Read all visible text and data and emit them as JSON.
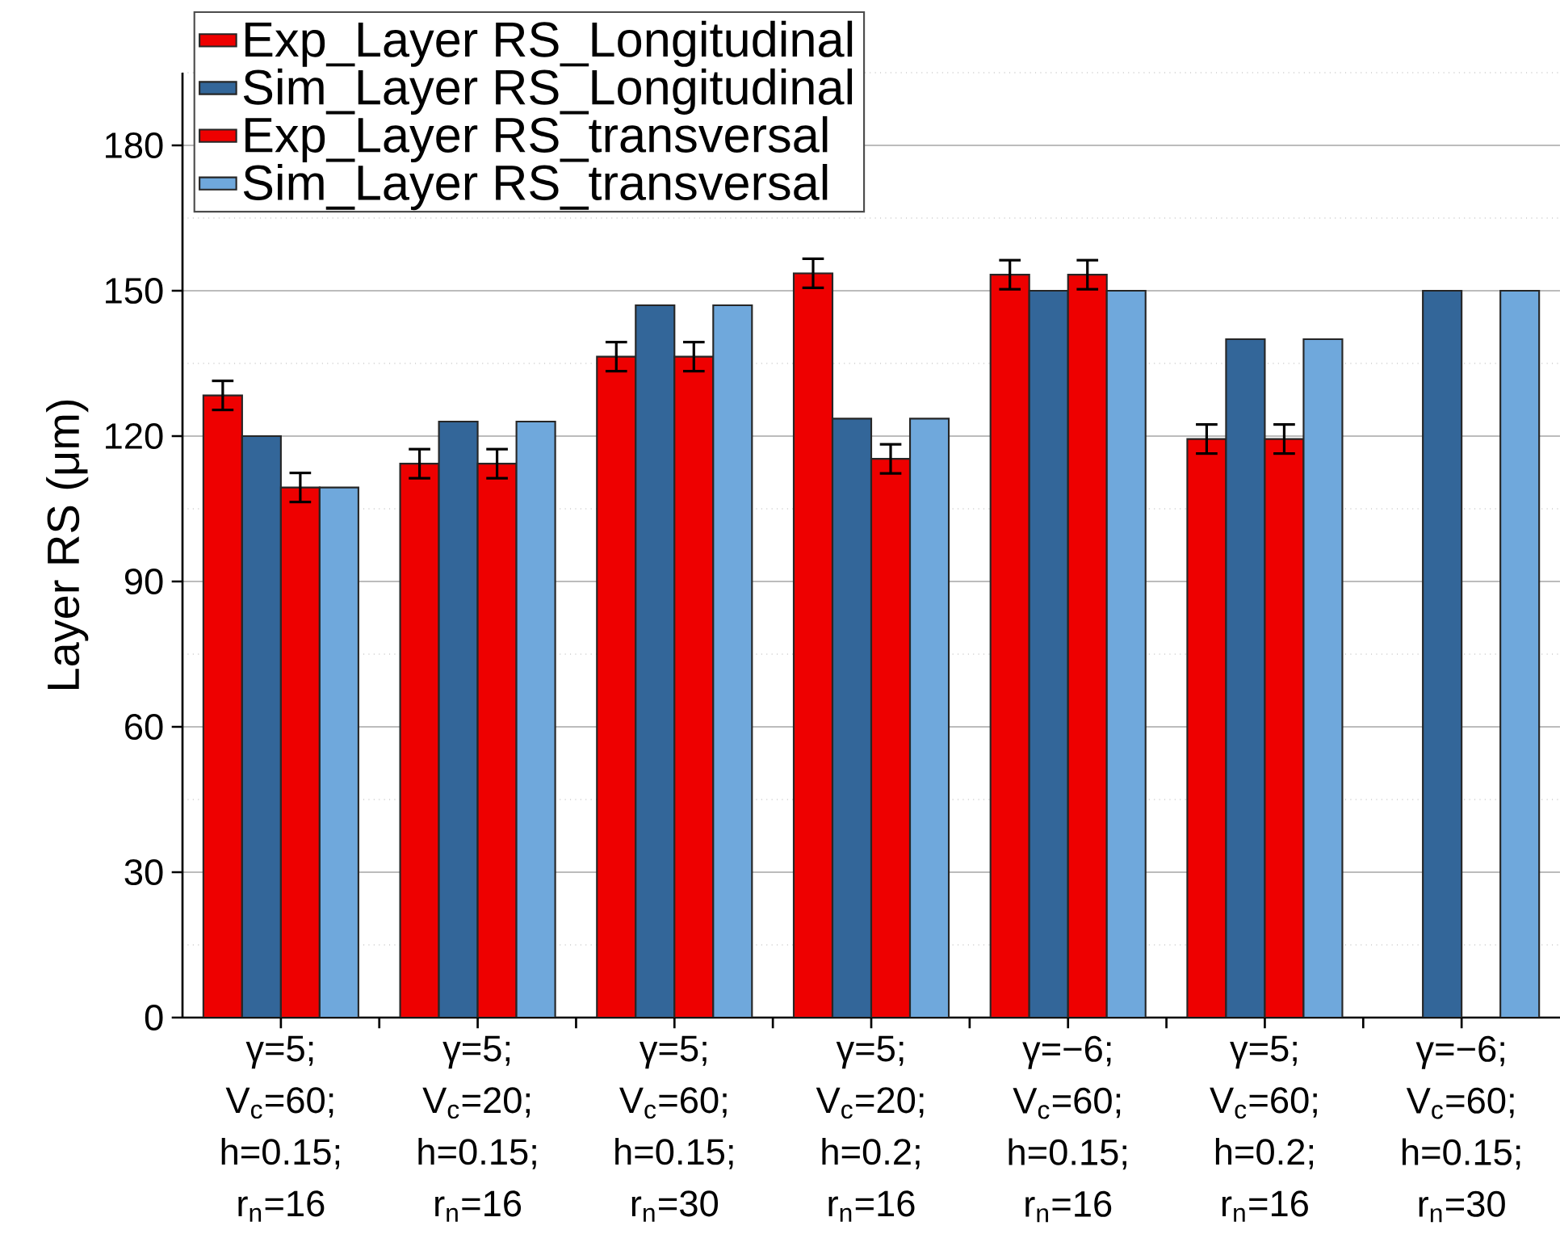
{
  "chart_data": {
    "type": "bar",
    "ylabel": "Layer RS (μm)",
    "categories": [
      "γ=5; V$_{c}$=60; h=0.15; r$_{n}$=16",
      "γ=5; V$_{c}$=20; h=0.15; r$_{n}$=16",
      "γ=5; V$_{c}$=60; h=0.15; r$_{n}$=30",
      "γ=5; V$_{c}$=20; h=0.2; r$_{n}$=16",
      "γ=−6; V$_{c}$=60; h=0.15; r$_{n}$=16",
      "γ=5; V$_{c}$=60; h=0.2; r$_{n}$=16",
      "γ=−6; V$_{c}$=60; h=0.15; r$_{n}$=30"
    ],
    "series": [
      {
        "name": "Exp_Layer RS_Longitudinal",
        "color": "#ee0000",
        "values": [
          128.4,
          114.3,
          136.4,
          153.6,
          153.3,
          119.4,
          null
        ],
        "errors": [
          3,
          3,
          3,
          3,
          3,
          3,
          null
        ]
      },
      {
        "name": "Sim_Layer RS_Longitudinal",
        "color": "#336699",
        "values": [
          120,
          123,
          147,
          123.6,
          150,
          140,
          150
        ]
      },
      {
        "name": "Exp_Layer RS_transversal",
        "color": "#ee0000",
        "values": [
          109.4,
          114.3,
          136.4,
          115.3,
          153.3,
          119.4,
          null
        ],
        "errors": [
          3,
          3,
          3,
          3,
          3,
          3,
          null
        ]
      },
      {
        "name": "Sim_Layer RS_transversal",
        "color": "#6fa8dc",
        "values": [
          109.4,
          123,
          147,
          123.6,
          150,
          140,
          150
        ]
      }
    ],
    "ylim": [
      0,
      195
    ],
    "yticks": [
      0,
      30,
      60,
      90,
      120,
      150,
      180
    ],
    "grid": "y",
    "legend": "top left"
  }
}
